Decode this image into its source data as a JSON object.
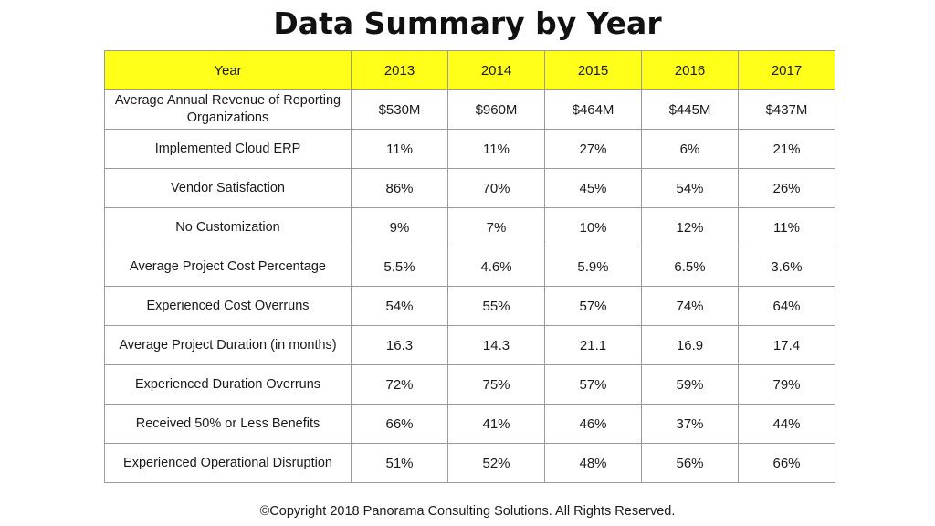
{
  "title": "Data Summary by Year",
  "footer": "©Copyright 2018 Panorama Consulting Solutions.  All Rights Reserved.",
  "colors": {
    "header_bg": "#ffff1a",
    "grid": "#9a9a9a"
  },
  "chart_data": {
    "type": "table",
    "title": "Data Summary by Year",
    "columns": [
      "Year",
      "2013",
      "2014",
      "2015",
      "2016",
      "2017"
    ],
    "rows": [
      [
        "Average Annual Revenue of Reporting Organizations",
        "$530M",
        "$960M",
        "$464M",
        "$445M",
        "$437M"
      ],
      [
        "Implemented Cloud ERP",
        "11%",
        "11%",
        "27%",
        "6%",
        "21%"
      ],
      [
        "Vendor Satisfaction",
        "86%",
        "70%",
        "45%",
        "54%",
        "26%"
      ],
      [
        "No Customization",
        "9%",
        "7%",
        "10%",
        "12%",
        "11%"
      ],
      [
        "Average Project Cost Percentage",
        "5.5%",
        "4.6%",
        "5.9%",
        "6.5%",
        "3.6%"
      ],
      [
        "Experienced Cost Overruns",
        "54%",
        "55%",
        "57%",
        "74%",
        "64%"
      ],
      [
        "Average Project Duration (in months)",
        "16.3",
        "14.3",
        "21.1",
        "16.9",
        "17.4"
      ],
      [
        "Experienced Duration Overruns",
        "72%",
        "75%",
        "57%",
        "59%",
        "79%"
      ],
      [
        "Received 50% or Less Benefits",
        "66%",
        "41%",
        "46%",
        "37%",
        "44%"
      ],
      [
        "Experienced Operational Disruption",
        "51%",
        "52%",
        "48%",
        "56%",
        "66%"
      ]
    ]
  }
}
